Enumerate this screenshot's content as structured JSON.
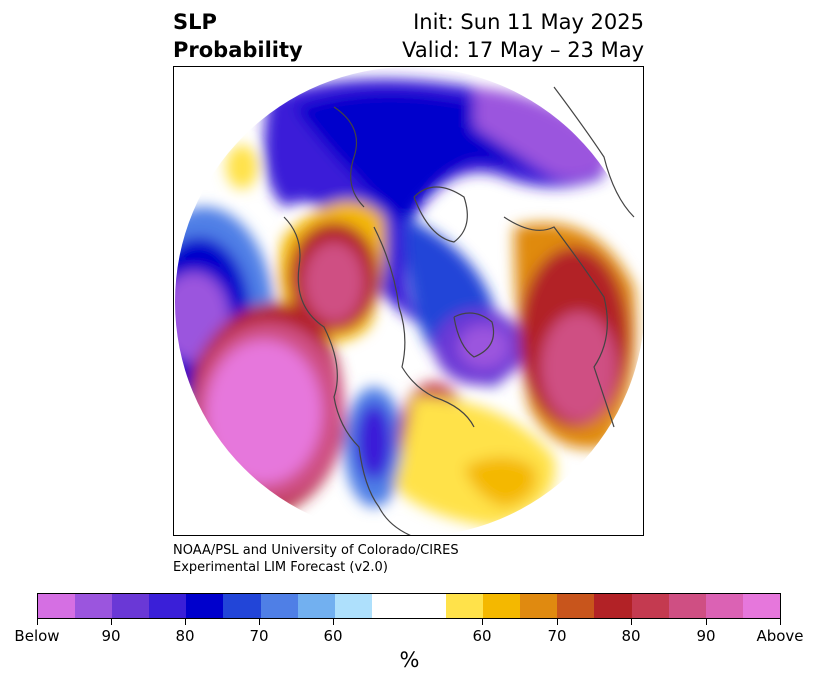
{
  "title": {
    "variable_line1": "SLP",
    "variable_line2": "Probability",
    "init": "Init: Sun 11 May 2025",
    "valid": "Valid: 17 May – 23 May"
  },
  "credit": {
    "line1": "NOAA/PSL and University of Colorado/CIRES",
    "line2": "Experimental LIM Forecast (v2.0)"
  },
  "map": {
    "projection": "north-polar-stereographic",
    "coastlines": true,
    "political_boundaries": true
  },
  "colorbar": {
    "unit": "%",
    "colors": [
      "#d56fe3",
      "#9b55de",
      "#6a38d6",
      "#3a1fd8",
      "#0000cc",
      "#2245d8",
      "#4f7fe6",
      "#72b0f0",
      "#aee0fc",
      "#ffffff",
      "#ffffff",
      "#ffe24a",
      "#f4b800",
      "#e08a10",
      "#c8551c",
      "#b22226",
      "#c43a50",
      "#cf4f83",
      "#db62b4",
      "#e677dc"
    ],
    "tick_labels": [
      "Below",
      "90",
      "80",
      "70",
      "60",
      "60",
      "70",
      "80",
      "90",
      "Above"
    ]
  }
}
